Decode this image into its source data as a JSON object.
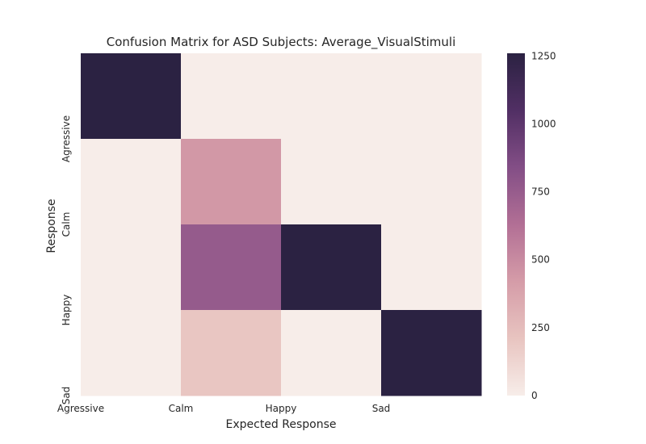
{
  "chart_data": {
    "type": "heatmap",
    "title": "Confusion Matrix for ASD Subjects: Average_VisualStimuli",
    "xlabel": "Expected Response",
    "ylabel": "Response",
    "x_categories": [
      "Agressive",
      "Calm",
      "Happy",
      "Sad"
    ],
    "y_categories": [
      "Agressive",
      "Calm",
      "Happy",
      "Sad"
    ],
    "rows": [
      {
        "values": [
          1260,
          0,
          0,
          0
        ]
      },
      {
        "values": [
          0,
          440,
          0,
          0
        ]
      },
      {
        "values": [
          0,
          760,
          1260,
          0
        ]
      },
      {
        "values": [
          0,
          200,
          0,
          1260
        ]
      }
    ],
    "colorbar": {
      "min": 0,
      "max": 1260,
      "ticks": [
        0,
        250,
        500,
        750,
        1000,
        1250
      ],
      "colormap": [
        "#f7ede9",
        "#e8c4c0",
        "#d59ca8",
        "#b26f95",
        "#834e86",
        "#512f64",
        "#2b2242"
      ]
    },
    "grid": false
  }
}
